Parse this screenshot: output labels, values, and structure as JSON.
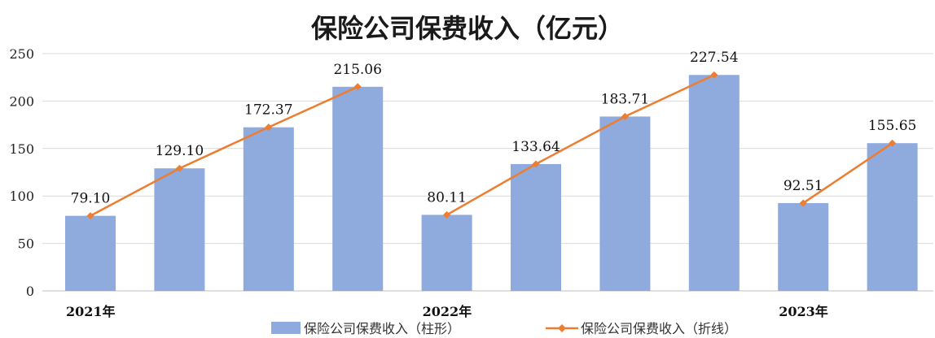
{
  "chart_data": {
    "type": "bar",
    "title": "保险公司保费收入（亿元）",
    "categories": [
      "2021年",
      "",
      "",
      "",
      "2022年",
      "",
      "",
      "",
      "2023年",
      ""
    ],
    "group_labels": [
      {
        "label": "2021年",
        "index": 0
      },
      {
        "label": "2022年",
        "index": 4
      },
      {
        "label": "2023年",
        "index": 8
      }
    ],
    "series": [
      {
        "name": "保险公司保费收入（柱形）",
        "type": "bar",
        "color": "#8faadc",
        "values": [
          79.1,
          129.1,
          172.37,
          215.06,
          80.11,
          133.64,
          183.71,
          227.54,
          92.51,
          155.65
        ]
      },
      {
        "name": "保险公司保费收入（折线）",
        "type": "line",
        "color": "#ed7d31",
        "segments": [
          [
            0,
            3
          ],
          [
            4,
            7
          ],
          [
            8,
            9
          ]
        ],
        "values": [
          79.1,
          129.1,
          172.37,
          215.06,
          80.11,
          133.64,
          183.71,
          227.54,
          92.51,
          155.65
        ]
      }
    ],
    "data_labels": [
      "79.10",
      "129.10",
      "172.37",
      "215.06",
      "80.11",
      "133.64",
      "183.71",
      "227.54",
      "92.51",
      "155.65"
    ],
    "yticks": [
      "0",
      "50",
      "100",
      "150",
      "200",
      "250"
    ],
    "ylim": [
      0,
      250
    ],
    "grid": true,
    "legend_position": "bottom",
    "xlabel": "",
    "ylabel": ""
  }
}
